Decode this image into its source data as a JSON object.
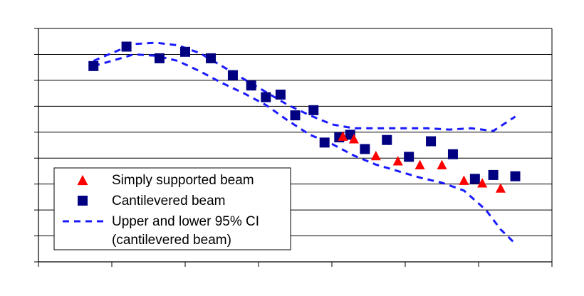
{
  "chart_data": {
    "type": "scatter",
    "title": "",
    "xlabel": "",
    "ylabel": "",
    "xlim": [
      0,
      7
    ],
    "ylim": [
      0,
      9
    ],
    "grid": {
      "horizontal": true,
      "vertical": false
    },
    "legend_position": "bottom-left",
    "colors": {
      "simply": "#ff0000",
      "cantilevered": "#000080",
      "ci": "#1a1aff",
      "grid": "#000000",
      "axis": "#000000"
    },
    "legend": {
      "items": [
        {
          "key": "simply",
          "lines": [
            "Simply supported beam"
          ]
        },
        {
          "key": "cantilevered",
          "lines": [
            "Cantilevered beam"
          ]
        },
        {
          "key": "ci",
          "lines": [
            "Upper and lower 95% CI",
            "(cantilevered beam)"
          ]
        }
      ]
    },
    "series": [
      {
        "key": "simply",
        "name": "Simply supported beam",
        "marker": "triangle",
        "points": [
          [
            4.15,
            4.85
          ],
          [
            4.3,
            4.75
          ],
          [
            4.6,
            4.1
          ],
          [
            4.9,
            3.9
          ],
          [
            5.2,
            3.75
          ],
          [
            5.5,
            3.75
          ],
          [
            5.8,
            3.15
          ],
          [
            6.05,
            3.05
          ],
          [
            6.3,
            2.85
          ]
        ]
      },
      {
        "key": "cantilevered",
        "name": "Cantilevered beam",
        "marker": "square",
        "points": [
          [
            0.75,
            7.55
          ],
          [
            1.2,
            8.3
          ],
          [
            1.65,
            7.85
          ],
          [
            2.0,
            8.1
          ],
          [
            2.35,
            7.85
          ],
          [
            2.65,
            7.2
          ],
          [
            2.9,
            6.8
          ],
          [
            3.1,
            6.35
          ],
          [
            3.3,
            6.45
          ],
          [
            3.5,
            5.65
          ],
          [
            3.75,
            5.85
          ],
          [
            3.9,
            4.6
          ],
          [
            4.1,
            4.8
          ],
          [
            4.25,
            4.9
          ],
          [
            4.45,
            4.35
          ],
          [
            4.75,
            4.7
          ],
          [
            5.05,
            4.05
          ],
          [
            5.35,
            4.65
          ],
          [
            5.65,
            4.15
          ],
          [
            5.95,
            3.2
          ],
          [
            6.2,
            3.35
          ],
          [
            6.5,
            3.3
          ]
        ]
      },
      {
        "key": "ci",
        "name": "Upper and lower 95% CI (cantilevered beam)",
        "line": "dashed",
        "curves": [
          [
            [
              0.75,
              7.75
            ],
            [
              1.0,
              8.05
            ],
            [
              1.3,
              8.4
            ],
            [
              1.6,
              8.45
            ],
            [
              1.9,
              8.35
            ],
            [
              2.2,
              8.05
            ],
            [
              2.5,
              7.55
            ],
            [
              2.8,
              7.05
            ],
            [
              3.1,
              6.55
            ],
            [
              3.4,
              6.05
            ],
            [
              3.7,
              5.65
            ],
            [
              4.0,
              5.3
            ],
            [
              4.3,
              5.15
            ],
            [
              4.7,
              5.15
            ],
            [
              5.0,
              5.15
            ],
            [
              5.3,
              5.15
            ],
            [
              5.6,
              5.1
            ],
            [
              5.9,
              5.15
            ],
            [
              6.2,
              5.05
            ],
            [
              6.5,
              5.6
            ]
          ],
          [
            [
              0.75,
              7.55
            ],
            [
              1.0,
              7.75
            ],
            [
              1.3,
              8.0
            ],
            [
              1.6,
              7.95
            ],
            [
              1.9,
              7.75
            ],
            [
              2.2,
              7.35
            ],
            [
              2.5,
              6.9
            ],
            [
              2.8,
              6.5
            ],
            [
              3.1,
              6.05
            ],
            [
              3.4,
              5.45
            ],
            [
              3.7,
              4.9
            ],
            [
              4.0,
              4.55
            ],
            [
              4.3,
              4.1
            ],
            [
              4.6,
              3.75
            ],
            [
              4.9,
              3.5
            ],
            [
              5.2,
              3.25
            ],
            [
              5.5,
              3.05
            ],
            [
              5.8,
              2.75
            ],
            [
              6.1,
              2.0
            ],
            [
              6.3,
              1.25
            ],
            [
              6.5,
              0.7
            ]
          ]
        ]
      }
    ]
  }
}
